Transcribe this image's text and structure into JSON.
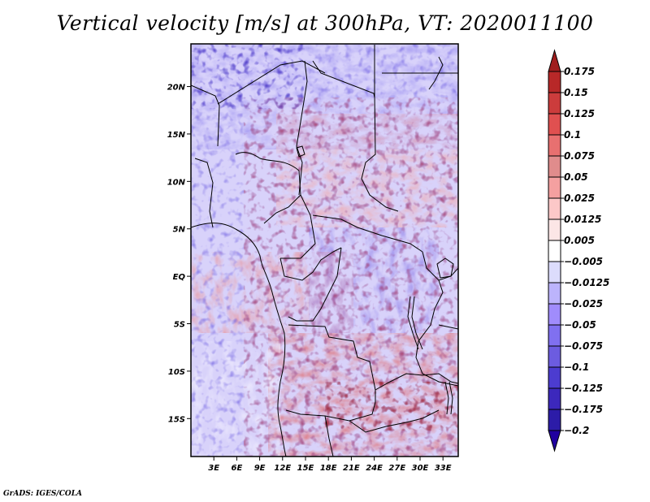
{
  "chart_data": {
    "type": "heatmap",
    "title": "Vertical velocity [m/s] at 300hPa, VT: 2020011100",
    "variable": "Vertical velocity",
    "units": "m/s",
    "level": "300hPa",
    "valid_time": "2020011100",
    "xlabel": "",
    "ylabel": "",
    "x_range_deg": [
      0,
      35
    ],
    "y_range_deg": [
      -19,
      24.5
    ],
    "x_ticks": [
      {
        "value": 3,
        "label": "3E"
      },
      {
        "value": 6,
        "label": "6E"
      },
      {
        "value": 9,
        "label": "9E"
      },
      {
        "value": 12,
        "label": "12E"
      },
      {
        "value": 15,
        "label": "15E"
      },
      {
        "value": 18,
        "label": "18E"
      },
      {
        "value": 21,
        "label": "21E"
      },
      {
        "value": 24,
        "label": "24E"
      },
      {
        "value": 27,
        "label": "27E"
      },
      {
        "value": 30,
        "label": "30E"
      },
      {
        "value": 33,
        "label": "33E"
      }
    ],
    "y_ticks": [
      {
        "value": 20,
        "label": "20N"
      },
      {
        "value": 15,
        "label": "15N"
      },
      {
        "value": 10,
        "label": "10N"
      },
      {
        "value": 5,
        "label": "5N"
      },
      {
        "value": 0,
        "label": "EQ"
      },
      {
        "value": -5,
        "label": "5S"
      },
      {
        "value": -10,
        "label": "10S"
      },
      {
        "value": -15,
        "label": "15S"
      }
    ],
    "colorbar": {
      "levels": [
        0.175,
        0.15,
        0.125,
        0.1,
        0.075,
        0.05,
        0.025,
        0.0125,
        0.005,
        -0.005,
        -0.0125,
        -0.025,
        -0.05,
        -0.075,
        -0.1,
        -0.125,
        -0.175,
        -0.2
      ],
      "labels": [
        "0.175",
        "0.15",
        "0.125",
        "0.1",
        "0.075",
        "0.05",
        "0.025",
        "0.0125",
        "0.005",
        "−0.005",
        "−0.0125",
        "−0.025",
        "−0.05",
        "−0.075",
        "−0.1",
        "−0.125",
        "−0.175",
        "−0.2"
      ],
      "colors_top_to_bottom": [
        "#a01e1e",
        "#b82828",
        "#cc3c3c",
        "#e05050",
        "#e87070",
        "#e08c8c",
        "#f4a0a0",
        "#fcc8c8",
        "#fce6e6",
        "#ffffff",
        "#dcdcfc",
        "#bcb4fc",
        "#a08cfc",
        "#8070f0",
        "#6c5ce0",
        "#4c3cd0",
        "#3c28bc",
        "#2c1ca8",
        "#2000a0"
      ],
      "extend": "both"
    },
    "regions": [
      {
        "area": "Sahara north (20N+)",
        "pattern": "mixed strong red/blue streaks, NE-SW oriented"
      },
      {
        "area": "Sahel 10-17N east",
        "pattern": "predominantly light red (weak ascent)"
      },
      {
        "area": "Gulf of Guinea / Atlantic 0-7S",
        "pattern": "red band with noisy dark red speckles"
      },
      {
        "area": "Congo Basin",
        "pattern": "predominantly blue (descent)"
      },
      {
        "area": "Angola/Zambia 8-17S",
        "pattern": "strong red (ascent), dark red cores"
      },
      {
        "area": "SE Atlantic 10-19S west",
        "pattern": "light blue/white with weak red patches"
      }
    ]
  },
  "footer": "GrADS: IGES/COLA"
}
